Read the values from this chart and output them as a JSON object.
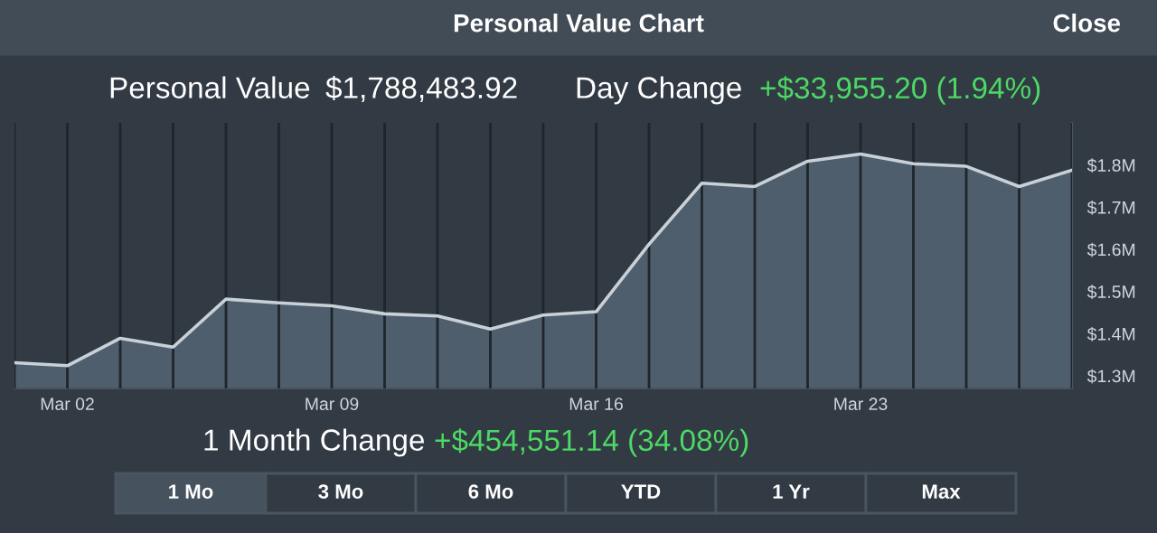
{
  "chart_data": {
    "type": "area",
    "title": "Personal Value Chart",
    "categories": [
      null,
      "Mar 02",
      null,
      null,
      null,
      null,
      "Mar 09",
      null,
      null,
      null,
      null,
      "Mar 16",
      null,
      null,
      null,
      null,
      "Mar 23",
      null,
      null,
      null,
      null
    ],
    "series": [
      {
        "color": "#c8d0d8",
        "values": [
          1.331,
          1.324,
          1.389,
          1.368,
          1.482,
          1.473,
          1.466,
          1.447,
          1.442,
          1.411,
          1.444,
          1.452,
          1.612,
          1.757,
          1.749,
          1.809,
          1.826,
          1.803,
          1.797,
          1.749,
          1.788
        ]
      }
    ],
    "ylim": [
      1.27,
      1.9
    ],
    "yticks": [
      {
        "value": 1.3,
        "label": "$1.3M"
      },
      {
        "value": 1.4,
        "label": "$1.4M"
      },
      {
        "value": 1.5,
        "label": "$1.5M"
      },
      {
        "value": 1.6,
        "label": "$1.6M"
      },
      {
        "value": 1.7,
        "label": "$1.7M"
      },
      {
        "value": 1.8,
        "label": "$1.8M"
      }
    ],
    "grid": "x",
    "annotations": [
      "Close",
      "Personal Value",
      "$1,788,483.92",
      "Day Change",
      "+$33,955.20 (1.94%)",
      "1 Month Change",
      "+$454,551.14 (34.08%)",
      "1 Mo",
      "3 Mo",
      "6 Mo",
      "YTD",
      "1 Yr",
      "Max"
    ]
  }
}
